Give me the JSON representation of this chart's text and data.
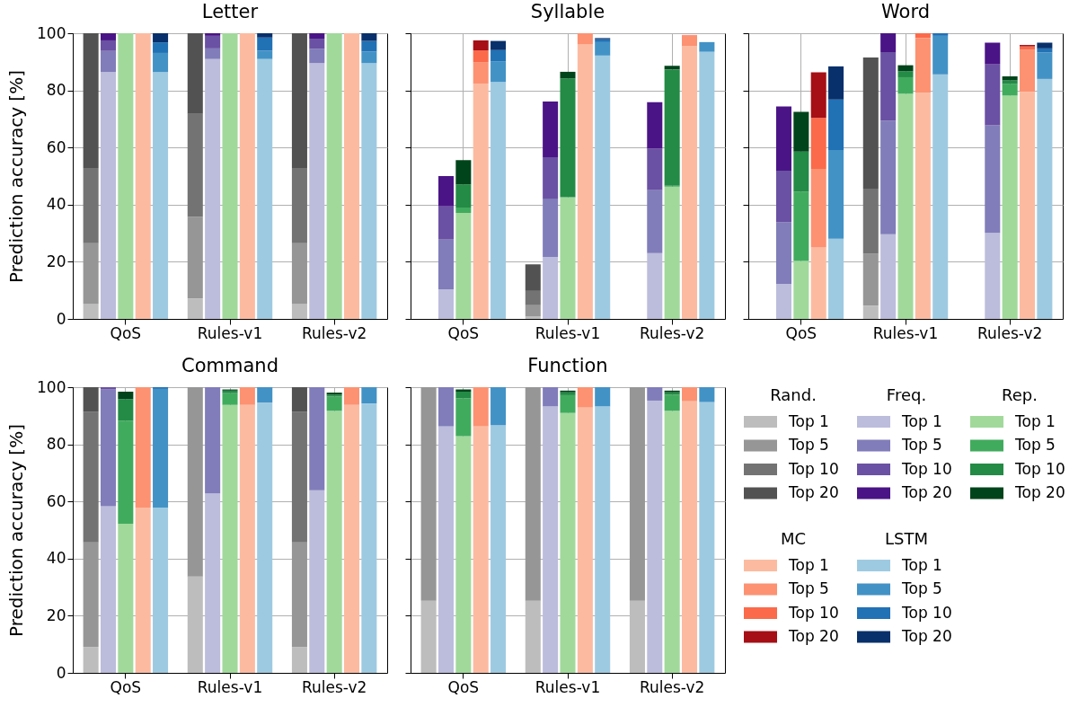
{
  "chart_data": [
    {
      "type": "bar",
      "title": "Letter",
      "ylabel": "Prediction accuracy [%]",
      "categories": [
        null,
        null,
        "QoS",
        null,
        null,
        null,
        null,
        null,
        "Rules-v1",
        null,
        null,
        null,
        null,
        null,
        "Rules-v2",
        null,
        null
      ],
      "stacked": true,
      "ylim": [
        0,
        100
      ],
      "yticks": [
        0,
        20,
        40,
        60,
        80,
        100
      ],
      "grid": true,
      "series": [
        {
          "color": "#bdbdbd",
          "values": [
            5.3,
            null,
            null,
            null,
            null,
            null,
            7.2,
            null,
            null,
            null,
            null,
            null,
            5.3,
            null,
            null,
            null,
            null
          ]
        },
        {
          "color": "#969696",
          "values": [
            21.2,
            null,
            null,
            null,
            null,
            null,
            28.6,
            null,
            null,
            null,
            null,
            null,
            21.2,
            null,
            null,
            null,
            null
          ]
        },
        {
          "color": "#737373",
          "values": [
            26.3,
            null,
            null,
            null,
            null,
            null,
            36.0,
            null,
            null,
            null,
            null,
            null,
            26.3,
            null,
            null,
            null,
            null
          ]
        },
        {
          "color": "#525252",
          "values": [
            47.2,
            null,
            null,
            null,
            null,
            null,
            28.2,
            null,
            null,
            null,
            null,
            null,
            47.2,
            null,
            null,
            null,
            null
          ]
        },
        {
          "color": "#bcbddc",
          "values": [
            null,
            86.4,
            null,
            null,
            null,
            null,
            null,
            91.0,
            null,
            null,
            null,
            null,
            null,
            89.5,
            null,
            null,
            null
          ]
        },
        {
          "color": "#807dba",
          "values": [
            null,
            7.4,
            null,
            null,
            null,
            null,
            null,
            3.7,
            null,
            null,
            null,
            null,
            null,
            5.0,
            null,
            null,
            null
          ]
        },
        {
          "color": "#6a51a3",
          "values": [
            null,
            3.7,
            null,
            null,
            null,
            null,
            null,
            4.4,
            null,
            null,
            null,
            null,
            null,
            3.6,
            null,
            null,
            null
          ]
        },
        {
          "color": "#4a1486",
          "values": [
            null,
            2.5,
            null,
            null,
            null,
            null,
            null,
            0.9,
            null,
            null,
            null,
            null,
            null,
            1.9,
            null,
            null,
            null
          ]
        },
        {
          "color": "#a1d99b",
          "values": [
            null,
            null,
            100,
            null,
            null,
            null,
            null,
            null,
            100,
            null,
            null,
            null,
            null,
            null,
            100,
            null,
            null
          ]
        },
        {
          "color": "#fcbba1",
          "values": [
            null,
            null,
            null,
            100,
            null,
            null,
            null,
            null,
            null,
            100,
            null,
            null,
            null,
            null,
            null,
            100,
            null
          ]
        },
        {
          "color": "#9ecae1",
          "values": [
            null,
            null,
            null,
            null,
            86.4,
            null,
            null,
            null,
            null,
            null,
            91.0,
            null,
            null,
            null,
            null,
            null,
            89.5
          ]
        },
        {
          "color": "#4292c6",
          "values": [
            null,
            null,
            null,
            null,
            6.7,
            null,
            null,
            null,
            null,
            null,
            2.9,
            null,
            null,
            null,
            null,
            null,
            4.1
          ]
        },
        {
          "color": "#2171b5",
          "values": [
            null,
            null,
            null,
            null,
            3.7,
            null,
            null,
            null,
            null,
            null,
            4.6,
            null,
            null,
            null,
            null,
            null,
            3.7
          ]
        },
        {
          "color": "#08306b",
          "values": [
            null,
            null,
            null,
            null,
            3.2,
            null,
            null,
            null,
            null,
            null,
            1.5,
            null,
            null,
            null,
            null,
            null,
            2.7
          ]
        }
      ]
    },
    {
      "type": "bar",
      "title": "Syllable",
      "categories": [
        null,
        null,
        "QoS",
        null,
        null,
        null,
        null,
        null,
        "Rules-v1",
        null,
        null,
        null,
        null,
        null,
        "Rules-v2",
        null,
        null
      ],
      "stacked": true,
      "ylim": [
        0,
        100
      ],
      "yticks": [
        0,
        20,
        40,
        60,
        80,
        100
      ],
      "grid": true,
      "tick_labels": "x",
      "series": [
        {
          "color": "#bdbdbd",
          "values": [
            null,
            null,
            null,
            null,
            null,
            null,
            0.9,
            null,
            null,
            null,
            null,
            null,
            null,
            null,
            null,
            null,
            null
          ]
        },
        {
          "color": "#969696",
          "values": [
            null,
            null,
            null,
            null,
            null,
            null,
            3.9,
            null,
            null,
            null,
            null,
            null,
            null,
            null,
            null,
            null,
            null
          ]
        },
        {
          "color": "#737373",
          "values": [
            null,
            null,
            null,
            null,
            null,
            null,
            5.0,
            null,
            null,
            null,
            null,
            null,
            null,
            null,
            null,
            null,
            null
          ]
        },
        {
          "color": "#525252",
          "values": [
            null,
            null,
            null,
            null,
            null,
            null,
            9.3,
            null,
            null,
            null,
            null,
            null,
            null,
            null,
            null,
            null,
            null
          ]
        },
        {
          "color": "#bcbddc",
          "values": [
            null,
            10.4,
            null,
            null,
            null,
            null,
            null,
            21.7,
            null,
            null,
            null,
            null,
            null,
            23.0,
            null,
            null,
            null
          ]
        },
        {
          "color": "#807dba",
          "values": [
            null,
            17.4,
            null,
            null,
            null,
            null,
            null,
            20.4,
            null,
            null,
            null,
            null,
            null,
            22.1,
            null,
            null,
            null
          ]
        },
        {
          "color": "#6a51a3",
          "values": [
            null,
            11.6,
            null,
            null,
            null,
            null,
            null,
            14.5,
            null,
            null,
            null,
            null,
            null,
            14.5,
            null,
            null,
            null
          ]
        },
        {
          "color": "#4a1486",
          "values": [
            null,
            10.6,
            null,
            null,
            null,
            null,
            null,
            19.5,
            null,
            null,
            null,
            null,
            null,
            16.3,
            null,
            null,
            null
          ]
        },
        {
          "color": "#a1d99b",
          "values": [
            null,
            null,
            37.1,
            null,
            null,
            null,
            null,
            null,
            42.6,
            null,
            null,
            null,
            null,
            null,
            46.3,
            null,
            null
          ]
        },
        {
          "color": "#41ab5d",
          "values": [
            null,
            null,
            1.9,
            null,
            null,
            null,
            null,
            null,
            null,
            null,
            null,
            null,
            null,
            null,
            0.3,
            null,
            null
          ]
        },
        {
          "color": "#238b45",
          "values": [
            null,
            null,
            8.1,
            null,
            null,
            null,
            null,
            null,
            41.6,
            null,
            null,
            null,
            null,
            null,
            40.7,
            null,
            null
          ]
        },
        {
          "color": "#00441b",
          "values": [
            null,
            null,
            8.5,
            null,
            null,
            null,
            null,
            null,
            2.3,
            null,
            null,
            null,
            null,
            null,
            1.3,
            null,
            null
          ]
        },
        {
          "color": "#fcbba1",
          "values": [
            null,
            null,
            null,
            82.4,
            null,
            null,
            null,
            null,
            null,
            96.2,
            null,
            null,
            null,
            null,
            null,
            95.6,
            null
          ]
        },
        {
          "color": "#fc9272",
          "values": [
            null,
            null,
            null,
            7.5,
            null,
            null,
            null,
            null,
            null,
            3.8,
            null,
            null,
            null,
            null,
            null,
            3.6,
            null
          ]
        },
        {
          "color": "#fb6a4a",
          "values": [
            null,
            null,
            null,
            4.1,
            null,
            null,
            null,
            null,
            null,
            null,
            null,
            null,
            null,
            null,
            null,
            0.2,
            null
          ]
        },
        {
          "color": "#a50f15",
          "values": [
            null,
            null,
            null,
            3.5,
            null,
            null,
            null,
            null,
            null,
            null,
            null,
            null,
            null,
            null,
            null,
            null,
            null
          ]
        },
        {
          "color": "#9ecae1",
          "values": [
            null,
            null,
            null,
            null,
            82.9,
            null,
            null,
            null,
            null,
            null,
            92.2,
            null,
            null,
            null,
            null,
            null,
            93.5
          ]
        },
        {
          "color": "#4292c6",
          "values": [
            null,
            null,
            null,
            null,
            7.3,
            null,
            null,
            null,
            null,
            null,
            4.7,
            null,
            null,
            null,
            null,
            null,
            3.4
          ]
        },
        {
          "color": "#2171b5",
          "values": [
            null,
            null,
            null,
            null,
            3.9,
            null,
            null,
            null,
            null,
            null,
            1.0,
            null,
            null,
            null,
            null,
            null,
            null
          ]
        },
        {
          "color": "#08306b",
          "values": [
            null,
            null,
            null,
            null,
            3.2,
            null,
            null,
            null,
            null,
            null,
            0.4,
            null,
            null,
            null,
            null,
            null,
            null
          ]
        }
      ]
    },
    {
      "type": "bar",
      "title": "Word",
      "categories": [
        null,
        null,
        "QoS",
        null,
        null,
        null,
        null,
        null,
        "Rules-v1",
        null,
        null,
        null,
        null,
        null,
        "Rules-v2",
        null,
        null
      ],
      "stacked": true,
      "ylim": [
        0,
        100
      ],
      "yticks": [
        0,
        20,
        40,
        60,
        80,
        100
      ],
      "grid": true,
      "tick_labels": "x",
      "series": [
        {
          "color": "#bdbdbd",
          "values": [
            null,
            null,
            null,
            null,
            null,
            null,
            4.6,
            null,
            null,
            null,
            null,
            null,
            null,
            null,
            null,
            null,
            null
          ]
        },
        {
          "color": "#969696",
          "values": [
            null,
            null,
            null,
            null,
            null,
            null,
            18.2,
            null,
            null,
            null,
            null,
            null,
            null,
            null,
            null,
            null,
            null
          ]
        },
        {
          "color": "#737373",
          "values": [
            null,
            null,
            null,
            null,
            null,
            null,
            22.8,
            null,
            null,
            null,
            null,
            null,
            null,
            null,
            null,
            null,
            null
          ]
        },
        {
          "color": "#525252",
          "values": [
            null,
            null,
            null,
            null,
            null,
            null,
            45.9,
            null,
            null,
            null,
            null,
            null,
            null,
            null,
            null,
            null,
            null
          ]
        },
        {
          "color": "#bcbddc",
          "values": [
            null,
            12.3,
            null,
            null,
            null,
            null,
            null,
            29.6,
            null,
            null,
            null,
            null,
            null,
            30.1,
            null,
            null,
            null
          ]
        },
        {
          "color": "#807dba",
          "values": [
            null,
            21.5,
            null,
            null,
            null,
            null,
            null,
            39.8,
            null,
            null,
            null,
            null,
            null,
            37.7,
            null,
            null,
            null
          ]
        },
        {
          "color": "#6a51a3",
          "values": [
            null,
            18.1,
            null,
            null,
            null,
            null,
            null,
            24.0,
            null,
            null,
            null,
            null,
            null,
            21.3,
            null,
            null,
            null
          ]
        },
        {
          "color": "#4a1486",
          "values": [
            null,
            22.5,
            null,
            null,
            null,
            null,
            null,
            6.6,
            null,
            null,
            null,
            null,
            null,
            7.6,
            null,
            null,
            null
          ]
        },
        {
          "color": "#a1d99b",
          "values": [
            null,
            null,
            20.3,
            null,
            null,
            null,
            null,
            null,
            78.8,
            null,
            null,
            null,
            null,
            null,
            78.2,
            null,
            null
          ]
        },
        {
          "color": "#41ab5d",
          "values": [
            null,
            null,
            24.2,
            null,
            null,
            null,
            null,
            null,
            5.8,
            null,
            null,
            null,
            null,
            null,
            4.0,
            null,
            null
          ]
        },
        {
          "color": "#238b45",
          "values": [
            null,
            null,
            14.1,
            null,
            null,
            null,
            null,
            null,
            2.1,
            null,
            null,
            null,
            null,
            null,
            1.3,
            null,
            null
          ]
        },
        {
          "color": "#00441b",
          "values": [
            null,
            null,
            13.9,
            null,
            null,
            null,
            null,
            null,
            2.1,
            null,
            null,
            null,
            null,
            null,
            1.4,
            null,
            null
          ]
        },
        {
          "color": "#fcbba1",
          "values": [
            null,
            null,
            null,
            25.0,
            null,
            null,
            null,
            null,
            null,
            79.2,
            null,
            null,
            null,
            null,
            null,
            79.5,
            null
          ]
        },
        {
          "color": "#fc9272",
          "values": [
            null,
            null,
            null,
            27.5,
            null,
            null,
            null,
            null,
            null,
            19.1,
            null,
            null,
            null,
            null,
            null,
            14.7,
            null
          ]
        },
        {
          "color": "#fb6a4a",
          "values": [
            null,
            null,
            null,
            17.9,
            null,
            null,
            null,
            null,
            null,
            1.7,
            null,
            null,
            null,
            null,
            null,
            1.2,
            null
          ]
        },
        {
          "color": "#a50f15",
          "values": [
            null,
            null,
            null,
            15.9,
            null,
            null,
            null,
            null,
            null,
            null,
            null,
            null,
            null,
            null,
            null,
            0.5,
            null
          ]
        },
        {
          "color": "#9ecae1",
          "values": [
            null,
            null,
            null,
            null,
            28.1,
            null,
            null,
            null,
            null,
            null,
            85.6,
            null,
            null,
            null,
            null,
            null,
            84.0
          ]
        },
        {
          "color": "#4292c6",
          "values": [
            null,
            null,
            null,
            null,
            31.0,
            null,
            null,
            null,
            null,
            null,
            13.5,
            null,
            null,
            null,
            null,
            null,
            9.3
          ]
        },
        {
          "color": "#2171b5",
          "values": [
            null,
            null,
            null,
            null,
            17.7,
            null,
            null,
            null,
            null,
            null,
            0.9,
            null,
            null,
            null,
            null,
            null,
            1.4
          ]
        },
        {
          "color": "#08306b",
          "values": [
            null,
            null,
            null,
            null,
            11.6,
            null,
            null,
            null,
            null,
            null,
            null,
            null,
            null,
            null,
            null,
            null,
            2.0
          ]
        }
      ]
    },
    {
      "type": "bar",
      "title": "Command",
      "ylabel": "Prediction accuracy [%]",
      "categories": [
        null,
        null,
        "QoS",
        null,
        null,
        null,
        null,
        null,
        "Rules-v1",
        null,
        null,
        null,
        null,
        null,
        "Rules-v2",
        null,
        null
      ],
      "stacked": true,
      "ylim": [
        0,
        100
      ],
      "yticks": [
        0,
        20,
        40,
        60,
        80,
        100
      ],
      "grid": true,
      "series": [
        {
          "color": "#bdbdbd",
          "values": [
            9.1,
            null,
            null,
            null,
            null,
            null,
            33.7,
            null,
            null,
            null,
            null,
            null,
            9.1,
            null,
            null,
            null,
            null
          ]
        },
        {
          "color": "#969696",
          "values": [
            36.6,
            null,
            null,
            null,
            null,
            null,
            66.3,
            null,
            null,
            null,
            null,
            null,
            36.6,
            null,
            null,
            null,
            null
          ]
        },
        {
          "color": "#737373",
          "values": [
            45.6,
            null,
            null,
            null,
            null,
            null,
            null,
            null,
            null,
            null,
            null,
            null,
            45.6,
            null,
            null,
            null,
            null
          ]
        },
        {
          "color": "#525252",
          "values": [
            8.7,
            null,
            null,
            null,
            null,
            null,
            null,
            null,
            null,
            null,
            null,
            null,
            8.7,
            null,
            null,
            null,
            null
          ]
        },
        {
          "color": "#bcbddc",
          "values": [
            null,
            58.3,
            null,
            null,
            null,
            null,
            null,
            62.8,
            null,
            null,
            null,
            null,
            null,
            63.9,
            null,
            null,
            null
          ]
        },
        {
          "color": "#807dba",
          "values": [
            null,
            40.9,
            null,
            null,
            null,
            null,
            null,
            37.2,
            null,
            null,
            null,
            null,
            null,
            36.1,
            null,
            null,
            null
          ]
        },
        {
          "color": "#6a51a3",
          "values": [
            null,
            0.8,
            null,
            null,
            null,
            null,
            null,
            null,
            null,
            null,
            null,
            null,
            null,
            null,
            null,
            null,
            null
          ]
        },
        {
          "color": "#a1d99b",
          "values": [
            null,
            null,
            52.2,
            null,
            null,
            null,
            null,
            null,
            93.8,
            null,
            null,
            null,
            null,
            null,
            91.7,
            null,
            null
          ]
        },
        {
          "color": "#41ab5d",
          "values": [
            null,
            null,
            36.1,
            null,
            null,
            null,
            null,
            null,
            4.1,
            null,
            null,
            null,
            null,
            null,
            5.0,
            null,
            null
          ]
        },
        {
          "color": "#238b45",
          "values": [
            null,
            null,
            7.5,
            null,
            null,
            null,
            null,
            null,
            0.9,
            null,
            null,
            null,
            null,
            null,
            0.7,
            null,
            null
          ]
        },
        {
          "color": "#00441b",
          "values": [
            null,
            null,
            2.6,
            null,
            null,
            null,
            null,
            null,
            0.4,
            null,
            null,
            null,
            null,
            null,
            0.7,
            null,
            null
          ]
        },
        {
          "color": "#fcbba1",
          "values": [
            null,
            null,
            null,
            57.9,
            null,
            null,
            null,
            null,
            null,
            93.8,
            null,
            null,
            null,
            null,
            null,
            93.8,
            null
          ]
        },
        {
          "color": "#fc9272",
          "values": [
            null,
            null,
            null,
            42.1,
            null,
            null,
            null,
            null,
            null,
            6.2,
            null,
            null,
            null,
            null,
            null,
            6.2,
            null
          ]
        },
        {
          "color": "#9ecae1",
          "values": [
            null,
            null,
            null,
            null,
            57.9,
            null,
            null,
            null,
            null,
            null,
            94.6,
            null,
            null,
            null,
            null,
            null,
            94.3
          ]
        },
        {
          "color": "#4292c6",
          "values": [
            null,
            null,
            null,
            null,
            41.5,
            null,
            null,
            null,
            null,
            null,
            5.4,
            null,
            null,
            null,
            null,
            null,
            5.7
          ]
        },
        {
          "color": "#2171b5",
          "values": [
            null,
            null,
            null,
            null,
            0.6,
            null,
            null,
            null,
            null,
            null,
            null,
            null,
            null,
            null,
            null,
            null,
            null
          ]
        }
      ]
    },
    {
      "type": "bar",
      "title": "Function",
      "categories": [
        null,
        null,
        "QoS",
        null,
        null,
        null,
        null,
        null,
        "Rules-v1",
        null,
        null,
        null,
        null,
        null,
        "Rules-v2",
        null,
        null
      ],
      "stacked": true,
      "ylim": [
        0,
        100
      ],
      "yticks": [
        0,
        20,
        40,
        60,
        80,
        100
      ],
      "grid": true,
      "tick_labels": "x",
      "legend": "right",
      "annotations": [
        "Rand.",
        "Freq.",
        "Rep.",
        "MC",
        "LSTM"
      ],
      "series": [
        {
          "name": "Top 1",
          "color": "#bdbdbd",
          "values": [
            25.2,
            null,
            null,
            null,
            null,
            null,
            25.2,
            null,
            null,
            null,
            null,
            null,
            25.2,
            null,
            null,
            null,
            null
          ]
        },
        {
          "name": "Top 5",
          "color": "#969696",
          "values": [
            74.8,
            null,
            null,
            null,
            null,
            null,
            74.8,
            null,
            null,
            null,
            null,
            null,
            74.8,
            null,
            null,
            null,
            null
          ]
        },
        {
          "name": "Top 10",
          "color": "#737373",
          "values": [
            null,
            null,
            null,
            null,
            null,
            null,
            null,
            null,
            null,
            null,
            null,
            null,
            null,
            null,
            null,
            null,
            null
          ]
        },
        {
          "name": "Top 20",
          "color": "#525252",
          "values": [
            null,
            null,
            null,
            null,
            null,
            null,
            null,
            null,
            null,
            null,
            null,
            null,
            null,
            null,
            null,
            null,
            null
          ]
        },
        {
          "name": "Top 1",
          "color": "#bcbddc",
          "values": [
            null,
            86.3,
            null,
            null,
            null,
            null,
            null,
            93.3,
            null,
            null,
            null,
            null,
            null,
            95.3,
            null,
            null,
            null
          ]
        },
        {
          "name": "Top 5",
          "color": "#807dba",
          "values": [
            null,
            13.7,
            null,
            null,
            null,
            null,
            null,
            6.7,
            null,
            null,
            null,
            null,
            null,
            4.7,
            null,
            null,
            null
          ]
        },
        {
          "name": "Top 10",
          "color": "#6a51a3",
          "values": [
            null,
            null,
            null,
            null,
            null,
            null,
            null,
            null,
            null,
            null,
            null,
            null,
            null,
            null,
            null,
            null,
            null
          ]
        },
        {
          "name": "Top 20",
          "color": "#4a1486",
          "values": [
            null,
            null,
            null,
            null,
            null,
            null,
            null,
            null,
            null,
            null,
            null,
            null,
            null,
            null,
            null,
            null,
            null
          ]
        },
        {
          "name": "Top 1",
          "color": "#a1d99b",
          "values": [
            null,
            null,
            82.9,
            null,
            null,
            null,
            null,
            null,
            91.0,
            null,
            null,
            null,
            null,
            null,
            91.7,
            null,
            null
          ]
        },
        {
          "name": "Top 5",
          "color": "#41ab5d",
          "values": [
            null,
            null,
            13.2,
            null,
            null,
            null,
            null,
            null,
            6.2,
            null,
            null,
            null,
            null,
            null,
            5.7,
            null,
            null
          ]
        },
        {
          "name": "Top 10",
          "color": "#238b45",
          "values": [
            null,
            null,
            2.3,
            null,
            null,
            null,
            null,
            null,
            1.0,
            null,
            null,
            null,
            null,
            null,
            0.8,
            null,
            null
          ]
        },
        {
          "name": "Top 20",
          "color": "#00441b",
          "values": [
            null,
            null,
            0.8,
            null,
            null,
            null,
            null,
            null,
            0.6,
            null,
            null,
            null,
            null,
            null,
            0.6,
            null,
            null
          ]
        },
        {
          "name": "Top 1",
          "color": "#fcbba1",
          "values": [
            null,
            null,
            null,
            86.3,
            null,
            null,
            null,
            null,
            null,
            92.9,
            null,
            null,
            null,
            null,
            null,
            95.1,
            null
          ]
        },
        {
          "name": "Top 5",
          "color": "#fc9272",
          "values": [
            null,
            null,
            null,
            13.7,
            null,
            null,
            null,
            null,
            null,
            7.1,
            null,
            null,
            null,
            null,
            null,
            4.9,
            null
          ]
        },
        {
          "name": "Top 10",
          "color": "#fb6a4a",
          "values": [
            null,
            null,
            null,
            null,
            null,
            null,
            null,
            null,
            null,
            null,
            null,
            null,
            null,
            null,
            null,
            null,
            null
          ]
        },
        {
          "name": "Top 20",
          "color": "#a50f15",
          "values": [
            null,
            null,
            null,
            null,
            null,
            null,
            null,
            null,
            null,
            null,
            null,
            null,
            null,
            null,
            null,
            null,
            null
          ]
        },
        {
          "name": "Top 1",
          "color": "#9ecae1",
          "values": [
            null,
            null,
            null,
            null,
            86.7,
            null,
            null,
            null,
            null,
            null,
            93.3,
            null,
            null,
            null,
            null,
            null,
            94.8
          ]
        },
        {
          "name": "Top 5",
          "color": "#4292c6",
          "values": [
            null,
            null,
            null,
            null,
            13.3,
            null,
            null,
            null,
            null,
            null,
            6.7,
            null,
            null,
            null,
            null,
            null,
            5.2
          ]
        },
        {
          "name": "Top 10",
          "color": "#2171b5",
          "values": [
            null,
            null,
            null,
            null,
            null,
            null,
            null,
            null,
            null,
            null,
            null,
            null,
            null,
            null,
            null,
            null,
            null
          ]
        },
        {
          "name": "Top 20",
          "color": "#08306b",
          "values": [
            null,
            null,
            null,
            null,
            null,
            null,
            null,
            null,
            null,
            null,
            null,
            null,
            null,
            null,
            null,
            null,
            null
          ]
        }
      ]
    }
  ]
}
